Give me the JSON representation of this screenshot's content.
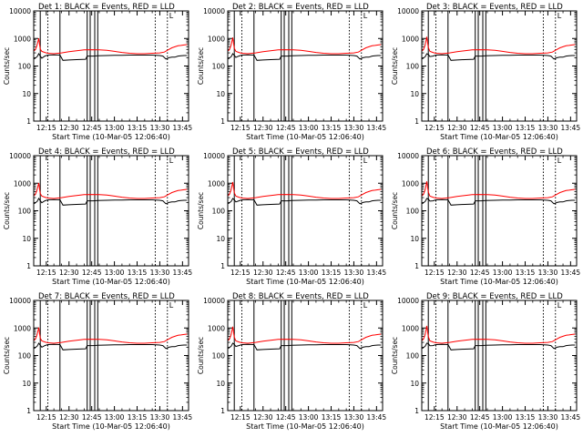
{
  "axis": {
    "ylabel": "Counts/sec",
    "xlabel": "Start Time (10-Mar-05 12:06:40)",
    "y_scale": "log",
    "ylim": [
      1,
      10000
    ],
    "y_ticks": [
      1,
      10,
      100,
      1000,
      10000
    ],
    "y_tick_labels": [
      "1",
      "10",
      "100",
      "1000",
      "10000"
    ],
    "x_ticks": [
      "12:15",
      "12:30",
      "12:45",
      "13:00",
      "13:15",
      "13:30",
      "13:45"
    ],
    "x_range_minutes": [
      "12:06:40",
      "13:49:00"
    ]
  },
  "marker_label": "L",
  "series_colors": {
    "Events": "#000000",
    "LLD": "#ff0000"
  },
  "panels": [
    {
      "title": "Det 1: BLACK = Events, RED = LLD"
    },
    {
      "title": "Det 2: BLACK = Events, RED = LLD"
    },
    {
      "title": "Det 3: BLACK = Events, RED = LLD"
    },
    {
      "title": "Det 4: BLACK = Events, RED = LLD"
    },
    {
      "title": "Det 5: BLACK = Events, RED = LLD"
    },
    {
      "title": "Det 6: BLACK = Events, RED = LLD"
    },
    {
      "title": "Det 7: BLACK = Events, RED = LLD"
    },
    {
      "title": "Det 8: BLACK = Events, RED = LLD"
    },
    {
      "title": "Det 9: BLACK = Events, RED = LLD"
    }
  ],
  "chart_data": {
    "type": "line",
    "y_scale": "log",
    "ylim": [
      1,
      10000
    ],
    "xlabel": "Start Time (10-Mar-05 12:06:40)",
    "ylabel": "Counts/sec",
    "x_ticks": [
      "12:15",
      "12:30",
      "12:45",
      "13:00",
      "13:15",
      "13:30",
      "13:45"
    ],
    "vertical_lines": {
      "solid": [
        "12:11",
        "12:24",
        "12:42",
        "12:44",
        "12:47",
        "12:49"
      ],
      "dotted": [
        "12:16",
        "13:27",
        "13:35"
      ]
    },
    "series": [
      {
        "name": "Events",
        "color": "#000000",
        "x": [
          "12:07",
          "12:09",
          "12:10",
          "12:11",
          "12:12",
          "12:14",
          "12:16",
          "12:20",
          "12:24",
          "12:26",
          "12:30",
          "12:35",
          "12:41",
          "12:42",
          "12:46",
          "12:49",
          "12:55",
          "13:00",
          "13:05",
          "13:10",
          "13:15",
          "13:20",
          "13:25",
          "13:30",
          "13:32",
          "13:34",
          "13:36",
          "13:38",
          "13:40",
          "13:42",
          "13:44",
          "13:46",
          "13:48"
        ],
        "values": [
          180,
          220,
          280,
          250,
          210,
          230,
          250,
          255,
          250,
          160,
          165,
          170,
          175,
          230,
          230,
          235,
          240,
          245,
          245,
          250,
          250,
          250,
          250,
          240,
          230,
          180,
          200,
          210,
          210,
          230,
          235,
          240,
          240
        ]
      },
      {
        "name": "LLD",
        "color": "#ff0000",
        "x": [
          "12:07",
          "12:08",
          "12:09",
          "12:10",
          "12:11",
          "12:12",
          "12:14",
          "12:16",
          "12:20",
          "12:25",
          "12:30",
          "12:35",
          "12:40",
          "12:45",
          "12:50",
          "12:55",
          "13:00",
          "13:05",
          "13:10",
          "13:15",
          "13:20",
          "13:25",
          "13:30",
          "13:33",
          "13:36",
          "13:38",
          "13:40",
          "13:42",
          "13:44",
          "13:46",
          "13:48"
        ],
        "values": [
          350,
          420,
          600,
          1100,
          450,
          340,
          310,
          290,
          280,
          300,
          330,
          360,
          385,
          390,
          385,
          370,
          340,
          310,
          290,
          280,
          280,
          290,
          300,
          320,
          400,
          460,
          500,
          540,
          560,
          580,
          600
        ]
      }
    ]
  }
}
